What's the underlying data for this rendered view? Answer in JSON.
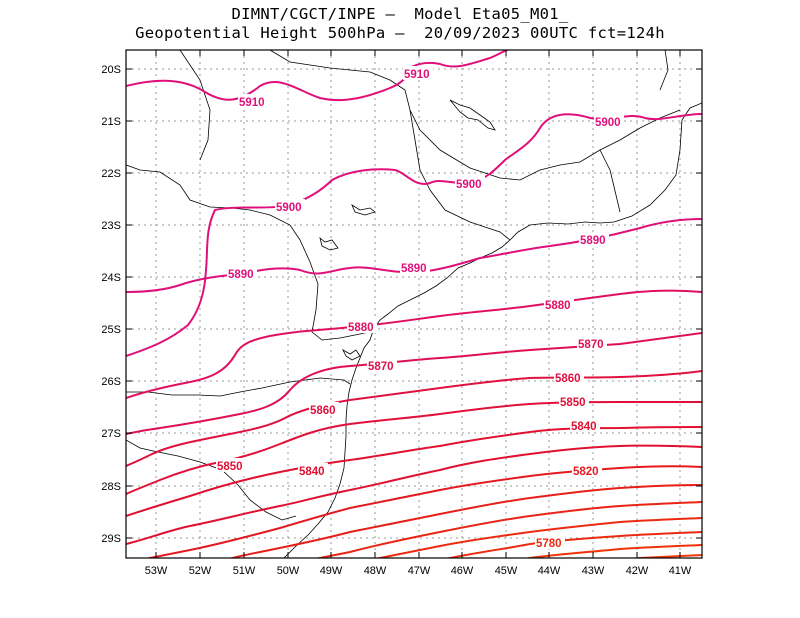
{
  "title": {
    "line1": "DIMNT/CGCT/INPE –  Model Eta05_M01_",
    "line2": "Geopotential Height 500hPa –  20/09/2023 00UTC fct=124h"
  },
  "axes": {
    "lat_labels": [
      "20S",
      "21S",
      "22S",
      "23S",
      "24S",
      "25S",
      "26S",
      "27S",
      "28S",
      "29S"
    ],
    "lon_labels": [
      "53W",
      "52W",
      "51W",
      "50W",
      "49W",
      "48W",
      "47W",
      "46W",
      "45W",
      "44W",
      "43W",
      "42W",
      "41W"
    ]
  },
  "contour_labels": [
    {
      "text": "5910",
      "color": "#e0107a"
    },
    {
      "text": "5910",
      "color": "#e0107a"
    },
    {
      "text": "5900",
      "color": "#e0107a"
    },
    {
      "text": "5900",
      "color": "#e0107a"
    },
    {
      "text": "5900",
      "color": "#e0107a"
    },
    {
      "text": "5890",
      "color": "#e0107a"
    },
    {
      "text": "5890",
      "color": "#e0107a"
    },
    {
      "text": "5890",
      "color": "#e0107a"
    },
    {
      "text": "5880",
      "color": "#e01060"
    },
    {
      "text": "5880",
      "color": "#e01060"
    },
    {
      "text": "5870",
      "color": "#e01050"
    },
    {
      "text": "5870",
      "color": "#e01050"
    },
    {
      "text": "5860",
      "color": "#e01040"
    },
    {
      "text": "5860",
      "color": "#e01040"
    },
    {
      "text": "5850",
      "color": "#e01038"
    },
    {
      "text": "5850",
      "color": "#e01038"
    },
    {
      "text": "5840",
      "color": "#e01030"
    },
    {
      "text": "5840",
      "color": "#e01030"
    },
    {
      "text": "5820",
      "color": "#e41a20"
    },
    {
      "text": "5780",
      "color": "#ec2a10"
    }
  ],
  "colors": {
    "contour_high": "#e0107a",
    "contour_mid": "#e01040",
    "contour_low": "#ec2a10",
    "coastline": "#000000",
    "grid": "#9a9a9a"
  }
}
